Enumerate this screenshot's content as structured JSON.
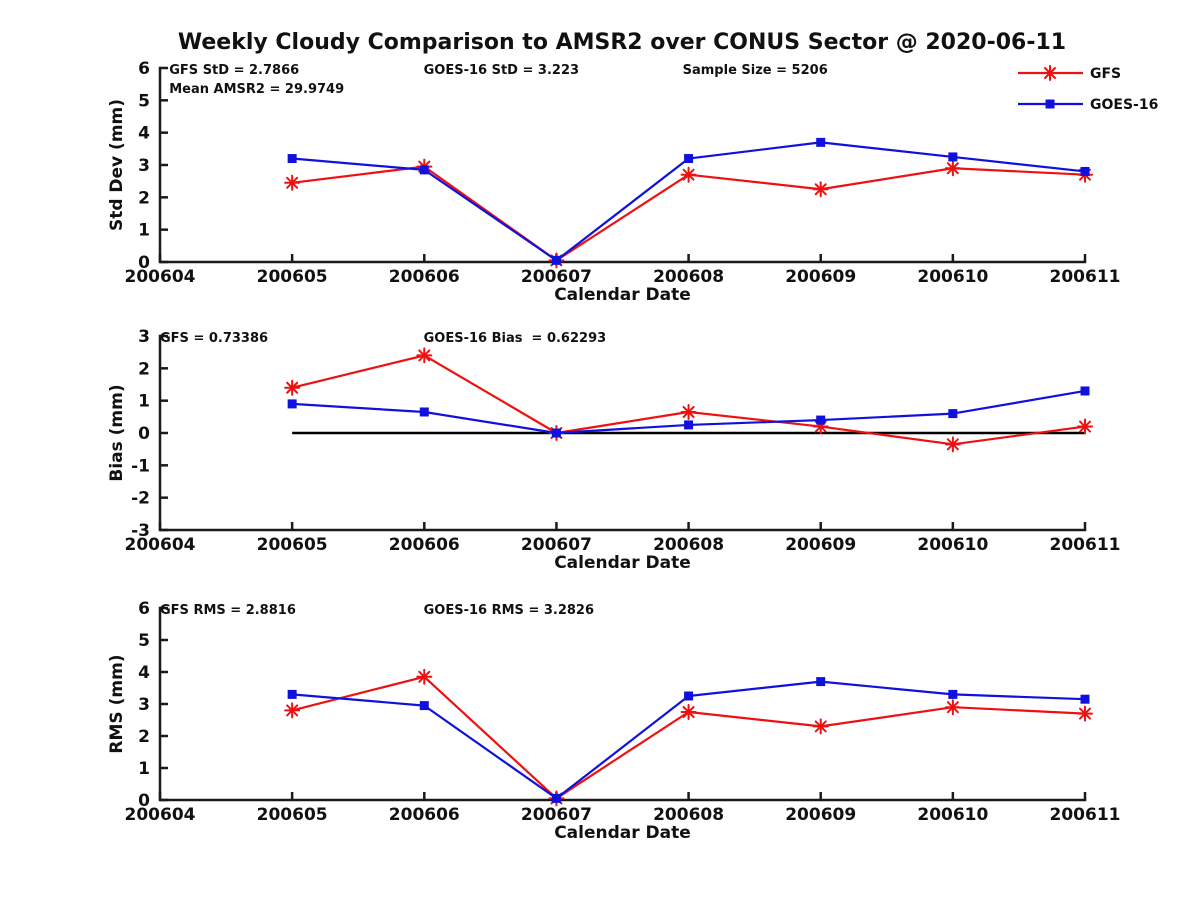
{
  "title": "Weekly Cloudy Comparison to AMSR2 over CONUS Sector @ 2020-06-11",
  "colors": {
    "gfs_red": "#EE1111",
    "goes_blue": "#1111DD",
    "axis": "#1a1a1a",
    "zero_line": "#000000",
    "background": "#ffffff"
  },
  "x_categories": [
    "200604",
    "200605",
    "200606",
    "200607",
    "200608",
    "200609",
    "200610",
    "200611"
  ],
  "legend": {
    "entries": [
      {
        "label": "GFS",
        "color": "#EE1111",
        "marker": "asterisk"
      },
      {
        "label": "GOES-16",
        "color": "#1111DD",
        "marker": "square"
      }
    ]
  },
  "chart_data": [
    {
      "type": "line",
      "name": "std-dev",
      "ylabel": "Std Dev (mm)",
      "xlabel": "Calendar Date",
      "ylim": [
        0,
        6
      ],
      "yticks": [
        0,
        1,
        2,
        3,
        4,
        5,
        6
      ],
      "x": [
        "200605",
        "200606",
        "200607",
        "200608",
        "200609",
        "200610",
        "200611"
      ],
      "series": [
        {
          "name": "GFS",
          "color": "#EE1111",
          "marker": "asterisk",
          "values": [
            2.45,
            2.95,
            0.05,
            2.7,
            2.25,
            2.9,
            2.7
          ]
        },
        {
          "name": "GOES-16",
          "color": "#1111DD",
          "marker": "square",
          "values": [
            3.2,
            2.85,
            0.05,
            3.2,
            3.7,
            3.25,
            2.8
          ]
        }
      ],
      "annotations": [
        {
          "text": "GFS StD = 2.7866",
          "xf": 0.01,
          "line": 0
        },
        {
          "text": "Mean AMSR2 = 29.9749",
          "xf": 0.01,
          "line": 1
        },
        {
          "text": "GOES-16 StD = 3.223",
          "xf": 0.285,
          "line": 0
        },
        {
          "text": "Sample Size = 5206",
          "xf": 0.565,
          "line": 0
        }
      ],
      "zero_line": false,
      "show_legend": true
    },
    {
      "type": "line",
      "name": "bias",
      "ylabel": "Bias (mm)",
      "xlabel": "Calendar Date",
      "ylim": [
        -3,
        3
      ],
      "yticks": [
        3,
        2,
        1,
        0,
        -1,
        -2,
        -3
      ],
      "x": [
        "200605",
        "200606",
        "200607",
        "200608",
        "200609",
        "200610",
        "200611"
      ],
      "series": [
        {
          "name": "GFS",
          "color": "#EE1111",
          "marker": "asterisk",
          "values": [
            1.4,
            2.4,
            0.0,
            0.65,
            0.2,
            -0.35,
            0.2
          ]
        },
        {
          "name": "GOES-16",
          "color": "#1111DD",
          "marker": "square",
          "values": [
            0.9,
            0.65,
            0.0,
            0.25,
            0.4,
            0.6,
            1.3
          ]
        }
      ],
      "annotations": [
        {
          "text": "GFS = 0.73386",
          "xf": 0.0,
          "line": 0
        },
        {
          "text": "GOES-16 Bias  = 0.62293",
          "xf": 0.285,
          "line": 0
        }
      ],
      "zero_line": true,
      "show_legend": false
    },
    {
      "type": "line",
      "name": "rms",
      "ylabel": "RMS (mm)",
      "xlabel": "Calendar Date",
      "ylim": [
        0,
        6
      ],
      "yticks": [
        0,
        1,
        2,
        3,
        4,
        5,
        6
      ],
      "x": [
        "200605",
        "200606",
        "200607",
        "200608",
        "200609",
        "200610",
        "200611"
      ],
      "series": [
        {
          "name": "GFS",
          "color": "#EE1111",
          "marker": "asterisk",
          "values": [
            2.8,
            3.85,
            0.05,
            2.75,
            2.3,
            2.9,
            2.7
          ]
        },
        {
          "name": "GOES-16",
          "color": "#1111DD",
          "marker": "square",
          "values": [
            3.3,
            2.95,
            0.05,
            3.25,
            3.7,
            3.3,
            3.15
          ]
        }
      ],
      "annotations": [
        {
          "text": "GFS RMS = 2.8816",
          "xf": 0.0,
          "line": 0
        },
        {
          "text": "GOES-16 RMS = 3.2826",
          "xf": 0.285,
          "line": 0
        }
      ],
      "zero_line": false,
      "show_legend": false
    }
  ]
}
